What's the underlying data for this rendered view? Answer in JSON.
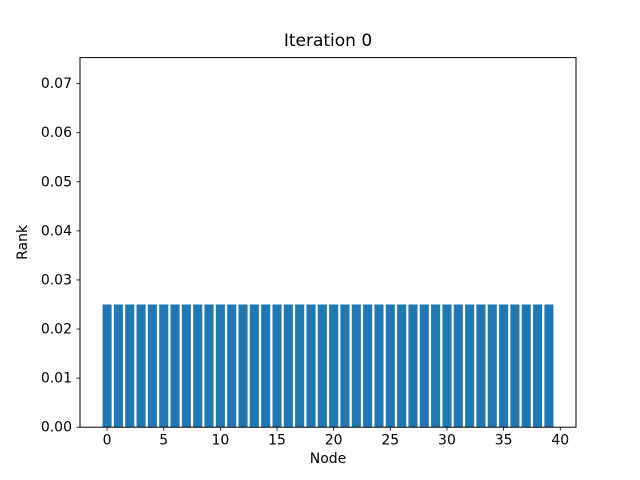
{
  "figure": {
    "background": "#ffffff",
    "text_color": "#000000",
    "spine_color": "#000000"
  },
  "chart_data": {
    "type": "bar",
    "title": "Iteration 0",
    "xlabel": "Node",
    "ylabel": "Rank",
    "x": [
      0,
      1,
      2,
      3,
      4,
      5,
      6,
      7,
      8,
      9,
      10,
      11,
      12,
      13,
      14,
      15,
      16,
      17,
      18,
      19,
      20,
      21,
      22,
      23,
      24,
      25,
      26,
      27,
      28,
      29,
      30,
      31,
      32,
      33,
      34,
      35,
      36,
      37,
      38,
      39
    ],
    "values": [
      0.025,
      0.025,
      0.025,
      0.025,
      0.025,
      0.025,
      0.025,
      0.025,
      0.025,
      0.025,
      0.025,
      0.025,
      0.025,
      0.025,
      0.025,
      0.025,
      0.025,
      0.025,
      0.025,
      0.025,
      0.025,
      0.025,
      0.025,
      0.025,
      0.025,
      0.025,
      0.025,
      0.025,
      0.025,
      0.025,
      0.025,
      0.025,
      0.025,
      0.025,
      0.025,
      0.025,
      0.025,
      0.025,
      0.025,
      0.025
    ],
    "bar_color": "#1f77b4",
    "bar_width": 0.8,
    "xlim": [
      -2.39,
      41.39
    ],
    "ylim": [
      0,
      0.0753
    ],
    "xticks": [
      0,
      5,
      10,
      15,
      20,
      25,
      30,
      35,
      40
    ],
    "xtick_labels": [
      "0",
      "5",
      "10",
      "15",
      "20",
      "25",
      "30",
      "35",
      "40"
    ],
    "yticks": [
      0.0,
      0.01,
      0.02,
      0.03,
      0.04,
      0.05,
      0.06,
      0.07
    ],
    "ytick_labels": [
      "0.00",
      "0.01",
      "0.02",
      "0.03",
      "0.04",
      "0.05",
      "0.06",
      "0.07"
    ],
    "grid": false,
    "legend": null
  }
}
